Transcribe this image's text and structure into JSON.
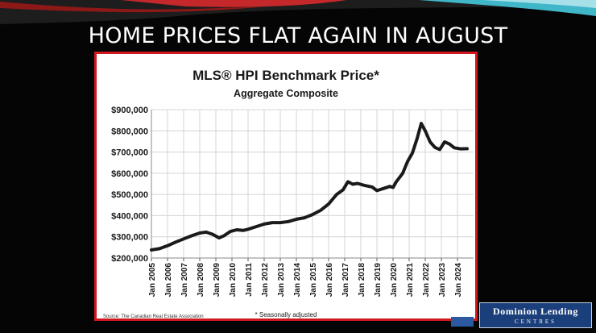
{
  "slide": {
    "title": "HOME PRICES FLAT AGAIN IN AUGUST"
  },
  "logo": {
    "main": "Dominion Lending",
    "sub": "CENTRES"
  },
  "chart_data": {
    "type": "line",
    "title": "MLS® HPI Benchmark Price*",
    "subtitle": "Aggregate Composite",
    "xlabel": "",
    "ylabel": "",
    "ylim": [
      200000,
      900000
    ],
    "yticks": [
      "$200,000",
      "$300,000",
      "$400,000",
      "$500,000",
      "$600,000",
      "$700,000",
      "$800,000",
      "$900,000"
    ],
    "ytick_values": [
      200000,
      300000,
      400000,
      500000,
      600000,
      700000,
      800000,
      900000
    ],
    "xticks": [
      "Jan 2005",
      "Jan 2006",
      "Jan 2007",
      "Jan 2008",
      "Jan 2009",
      "Jan 2010",
      "Jan 2011",
      "Jan 2012",
      "Jan 2013",
      "Jan 2014",
      "Jan 2015",
      "Jan 2016",
      "Jan 2017",
      "Jan 2018",
      "Jan 2019",
      "Jan 2020",
      "Jan 2021",
      "Jan 2022",
      "Jan 2023",
      "Jan 2024"
    ],
    "grid": true,
    "series": [
      {
        "values": [
          [
            2005.0,
            238000
          ],
          [
            2005.5,
            244000
          ],
          [
            2006.0,
            258000
          ],
          [
            2006.5,
            275000
          ],
          [
            2007.0,
            290000
          ],
          [
            2007.5,
            305000
          ],
          [
            2008.0,
            318000
          ],
          [
            2008.4,
            322000
          ],
          [
            2008.8,
            312000
          ],
          [
            2009.2,
            295000
          ],
          [
            2009.5,
            305000
          ],
          [
            2009.9,
            325000
          ],
          [
            2010.3,
            333000
          ],
          [
            2010.7,
            330000
          ],
          [
            2011.0,
            336000
          ],
          [
            2011.5,
            348000
          ],
          [
            2012.0,
            360000
          ],
          [
            2012.5,
            367000
          ],
          [
            2013.0,
            367000
          ],
          [
            2013.5,
            372000
          ],
          [
            2014.0,
            383000
          ],
          [
            2014.5,
            390000
          ],
          [
            2015.0,
            405000
          ],
          [
            2015.5,
            425000
          ],
          [
            2016.0,
            455000
          ],
          [
            2016.5,
            500000
          ],
          [
            2016.9,
            522000
          ],
          [
            2017.2,
            560000
          ],
          [
            2017.5,
            548000
          ],
          [
            2017.8,
            552000
          ],
          [
            2018.2,
            543000
          ],
          [
            2018.7,
            535000
          ],
          [
            2019.0,
            518000
          ],
          [
            2019.4,
            528000
          ],
          [
            2019.8,
            538000
          ],
          [
            2020.0,
            533000
          ],
          [
            2020.2,
            560000
          ],
          [
            2020.6,
            600000
          ],
          [
            2020.9,
            655000
          ],
          [
            2021.2,
            695000
          ],
          [
            2021.5,
            765000
          ],
          [
            2021.75,
            835000
          ],
          [
            2022.0,
            800000
          ],
          [
            2022.3,
            748000
          ],
          [
            2022.6,
            722000
          ],
          [
            2022.9,
            712000
          ],
          [
            2023.2,
            748000
          ],
          [
            2023.5,
            738000
          ],
          [
            2023.8,
            720000
          ],
          [
            2024.2,
            715000
          ],
          [
            2024.6,
            716000
          ]
        ],
        "color": "#1a1a1a"
      }
    ],
    "footnote": "* Seasonally adjusted",
    "source": "Source: The Canadian Real Estate Association"
  }
}
